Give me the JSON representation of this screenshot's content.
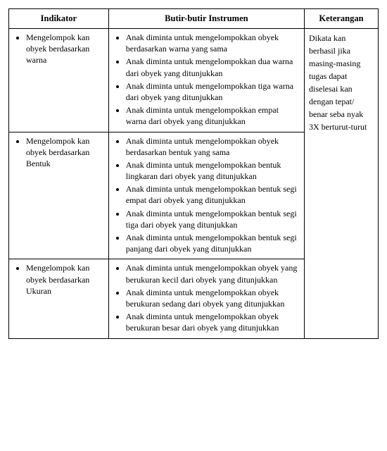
{
  "headers": {
    "col1": "Indikator",
    "col2": "Butir-butir Instrumen",
    "col3": "Keterangan"
  },
  "rows": [
    {
      "indikator": "Mengelompok kan obyek berdasarkan warna",
      "butir": [
        "Anak diminta untuk mengelompokkan obyek  berdasarkan warna yang sama",
        "Anak diminta untuk mengelompokkan dua warna dari obyek yang ditunjukkan",
        "Anak diminta untuk mengelompokkan tiga warna dari obyek  yang ditunjukkan",
        "Anak diminta untuk mengelompokkan empat warna dari obyek  yang  ditunjukkan"
      ]
    },
    {
      "indikator": "Mengelompok kan obyek berdasarkan Bentuk",
      "butir": [
        "Anak diminta untuk mengelompokkan obyek  berdasarkan bentuk yang sama",
        "Anak diminta untuk mengelompokkan bentuk lingkaran dari obyek  yang ditunjukkan",
        "Anak diminta untuk mengelompokkan bentuk segi empat dari obyek  yang ditunjukkan",
        "Anak diminta untuk mengelompokkan bentuk segi tiga dari obyek  yang ditunjukkan",
        "Anak diminta untuk mengelompokkan bentuk segi panjang dari obyek  yang ditunjukkan"
      ]
    },
    {
      "indikator": "Mengelompok kan obyek berdasarkan Ukuran",
      "butir": [
        "Anak diminta untuk mengelompokkan obyek yang berukuran kecil dari obyek  yang ditunjukkan",
        "Anak diminta untuk mengelompokkan obyek berukuran sedang dari obyek  yang ditunjukkan",
        "Anak diminta untuk mengelompokkan obyek berukuran besar dari obyek  yang ditunjukkan"
      ]
    }
  ],
  "keterangan": "Dikata kan berhasil jika masing-masing tugas dapat diselesai kan dengan tepat/ benar seba nyak 3X berturut-turut"
}
